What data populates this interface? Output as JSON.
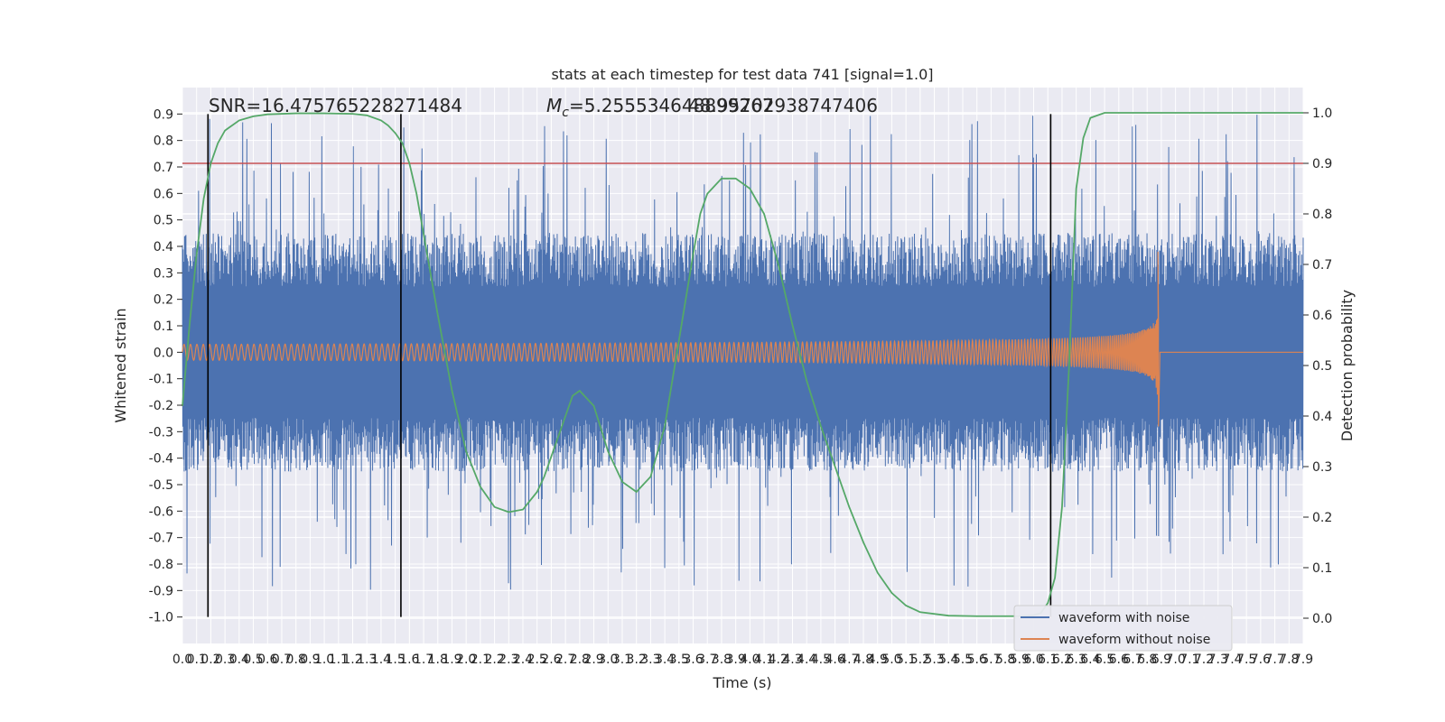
{
  "chart_data": {
    "type": "line",
    "title": "stats at each timestep for test data 741 [signal=1.0]",
    "xlabel": "Time (s)",
    "ylabel": "Whitened strain",
    "y2label": "Detection probability",
    "xlim": [
      0.0,
      7.9
    ],
    "ylim": [
      -1.1,
      1.0
    ],
    "y2lim": [
      -0.05,
      1.05
    ],
    "x_ticks": [
      0.0,
      0.1,
      0.2,
      0.3,
      0.4,
      0.5,
      0.6,
      0.7,
      0.8,
      0.9,
      1.0,
      1.1,
      1.2,
      1.3,
      1.4,
      1.5,
      1.6,
      1.7,
      1.8,
      1.9,
      2.0,
      2.1,
      2.2,
      2.3,
      2.4,
      2.5,
      2.6,
      2.7,
      2.8,
      2.9,
      3.0,
      3.1,
      3.2,
      3.3,
      3.4,
      3.5,
      3.6,
      3.7,
      3.8,
      3.9,
      4.0,
      4.1,
      4.2,
      4.3,
      4.4,
      4.5,
      4.6,
      4.7,
      4.8,
      4.9,
      5.0,
      5.1,
      5.2,
      5.3,
      5.4,
      5.5,
      5.6,
      5.7,
      5.8,
      5.9,
      6.0,
      6.1,
      6.2,
      6.3,
      6.4,
      6.5,
      6.6,
      6.7,
      6.8,
      6.9,
      7.0,
      7.1,
      7.2,
      7.3,
      7.4,
      7.5,
      7.6,
      7.7,
      7.8,
      7.9
    ],
    "y_ticks": [
      0.9,
      0.8,
      0.7,
      0.6,
      0.5,
      0.4,
      0.3,
      0.2,
      0.1,
      0.0,
      -0.1,
      -0.2,
      -0.3,
      -0.4,
      -0.5,
      -0.6,
      -0.7,
      -0.8,
      -0.9,
      -1.0
    ],
    "y2_ticks": [
      1.0,
      0.9,
      0.8,
      0.7,
      0.6,
      0.5,
      0.4,
      0.3,
      0.2,
      0.1,
      0.0
    ],
    "threshold": 0.9,
    "threshold_color": "#c44e52",
    "vertical_lines_x": [
      0.18,
      1.54,
      6.12
    ],
    "vertical_lines_range": [
      -1.0,
      0.9
    ],
    "annotations": {
      "snr": "SNR=16.475765228271484",
      "mc_prefix": "M",
      "mc_sub": "c",
      "mc_value": "=5.255534648899267",
      "mc_overlap": "48.95702938747406"
    },
    "series": [
      {
        "name": "waveform with noise",
        "color": "#4c72b0",
        "description": "noisy strain, approx. symmetric about 0",
        "envelope_amplitude": 0.45,
        "peak_amplitude": 0.9
      },
      {
        "name": "waveform without noise",
        "color": "#dd8452",
        "description": "chirp signal growing until merger",
        "amplitude_start": 0.03,
        "merger_time": 6.88,
        "merger_max": 0.38,
        "merger_min": -0.28,
        "post_merger_value": 0.0
      },
      {
        "name": "Detection probability",
        "color": "#55a868",
        "axis": "right",
        "x": [
          0.0,
          0.05,
          0.1,
          0.15,
          0.2,
          0.25,
          0.3,
          0.4,
          0.5,
          0.6,
          0.8,
          1.0,
          1.2,
          1.3,
          1.4,
          1.45,
          1.5,
          1.55,
          1.6,
          1.65,
          1.7,
          1.8,
          1.9,
          2.0,
          2.1,
          2.2,
          2.3,
          2.4,
          2.5,
          2.55,
          2.6,
          2.7,
          2.75,
          2.8,
          2.9,
          3.0,
          3.1,
          3.2,
          3.3,
          3.4,
          3.5,
          3.6,
          3.65,
          3.7,
          3.8,
          3.9,
          4.0,
          4.1,
          4.2,
          4.3,
          4.4,
          4.5,
          4.6,
          4.7,
          4.8,
          4.9,
          5.0,
          5.1,
          5.2,
          5.4,
          5.6,
          5.8,
          5.9,
          6.0,
          6.05,
          6.1,
          6.15,
          6.2,
          6.25,
          6.3,
          6.35,
          6.4,
          6.5,
          7.0,
          7.9
        ],
        "values": [
          0.42,
          0.58,
          0.72,
          0.83,
          0.9,
          0.94,
          0.965,
          0.985,
          0.993,
          0.997,
          0.999,
          0.999,
          0.998,
          0.995,
          0.985,
          0.975,
          0.96,
          0.94,
          0.9,
          0.84,
          0.76,
          0.6,
          0.45,
          0.33,
          0.26,
          0.22,
          0.21,
          0.215,
          0.25,
          0.28,
          0.32,
          0.4,
          0.44,
          0.45,
          0.42,
          0.33,
          0.27,
          0.25,
          0.28,
          0.38,
          0.55,
          0.72,
          0.8,
          0.84,
          0.87,
          0.87,
          0.85,
          0.8,
          0.7,
          0.58,
          0.47,
          0.38,
          0.3,
          0.22,
          0.15,
          0.09,
          0.05,
          0.025,
          0.012,
          0.005,
          0.004,
          0.004,
          0.004,
          0.006,
          0.01,
          0.03,
          0.08,
          0.22,
          0.5,
          0.85,
          0.95,
          0.99,
          1.0,
          1.0,
          1.0
        ]
      }
    ],
    "legend": {
      "placement": "lower-right",
      "entries": [
        "waveform with noise",
        "waveform without noise"
      ]
    },
    "background": "#eaeaf2",
    "grid": true
  }
}
